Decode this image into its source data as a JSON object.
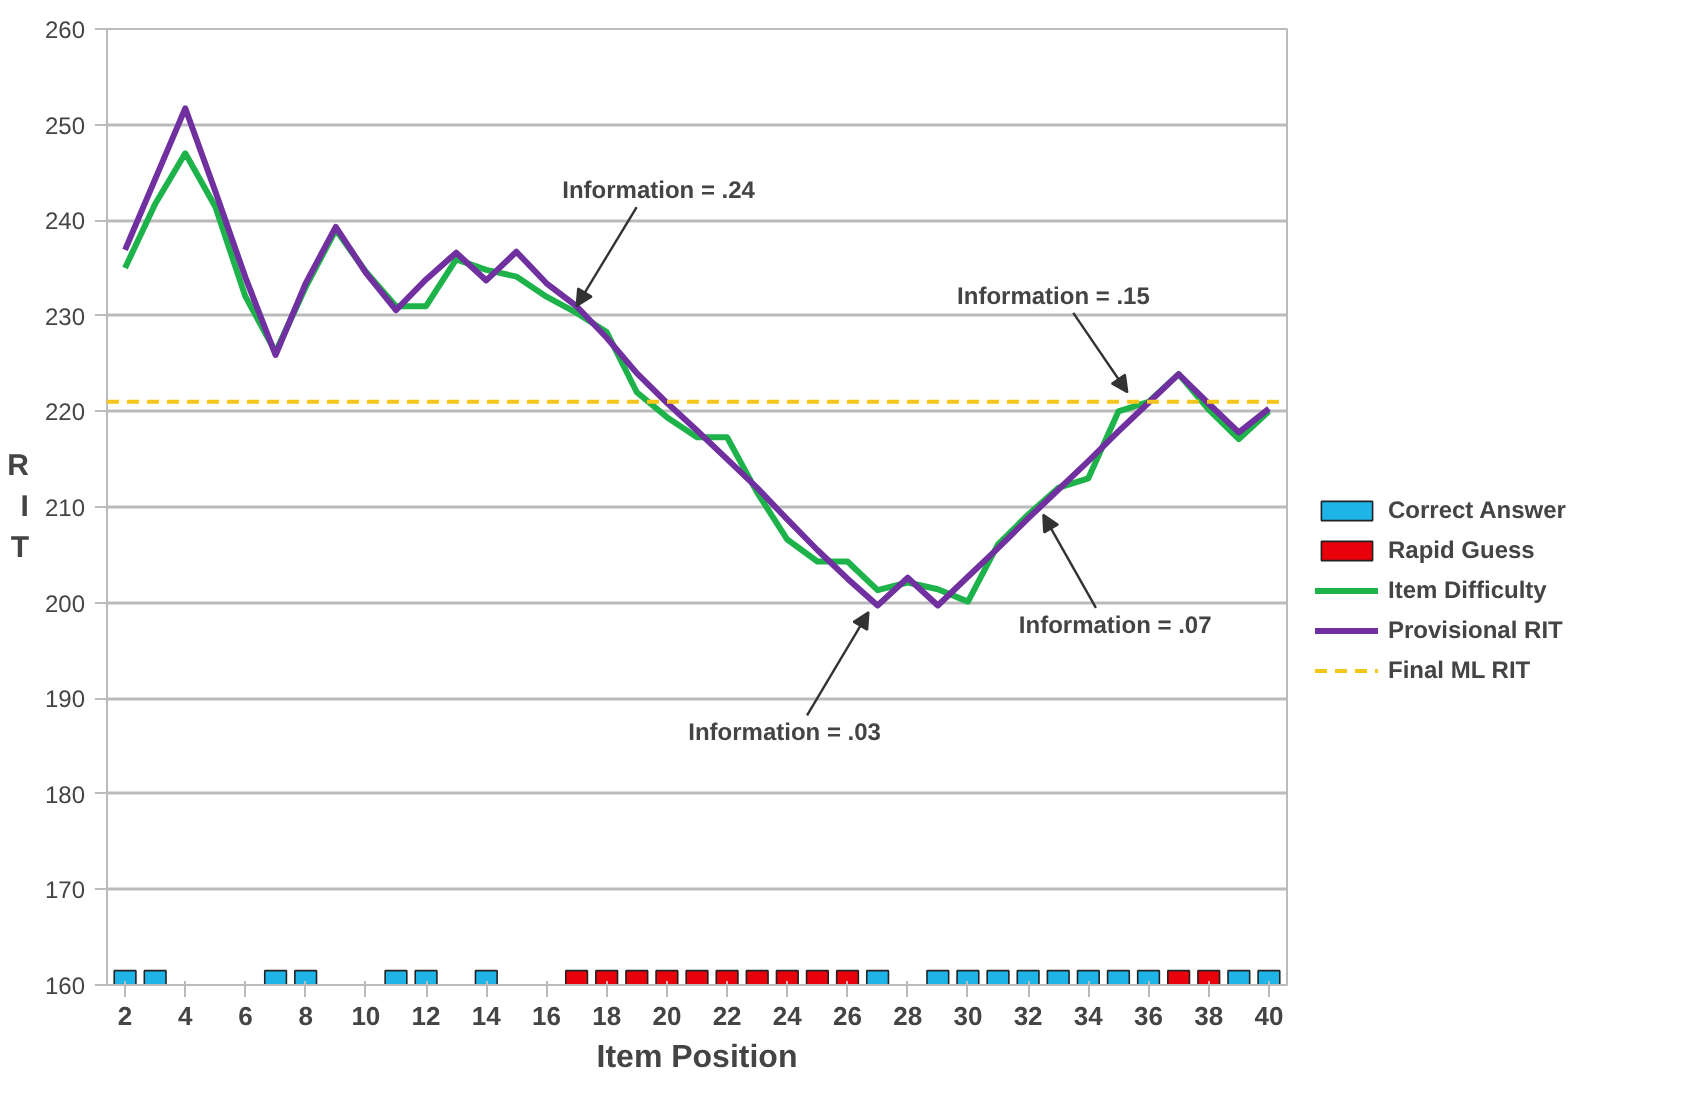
{
  "chart_data": {
    "type": "line",
    "xlabel": "Item Position",
    "ylabel": "RIT",
    "x": [
      2,
      3,
      4,
      5,
      6,
      7,
      8,
      9,
      10,
      11,
      12,
      13,
      14,
      15,
      16,
      17,
      18,
      19,
      20,
      21,
      22,
      23,
      24,
      25,
      26,
      27,
      28,
      29,
      30,
      31,
      32,
      33,
      34,
      35,
      36,
      37,
      38,
      39,
      40
    ],
    "series": [
      {
        "name": "Correct Answer",
        "type": "bar",
        "color": "#1fb4e8",
        "values": [
          161.5,
          161.5,
          null,
          null,
          null,
          161.5,
          161.5,
          null,
          null,
          161.5,
          161.5,
          null,
          161.5,
          null,
          null,
          null,
          null,
          null,
          null,
          null,
          null,
          null,
          null,
          null,
          null,
          161.5,
          null,
          161.5,
          161.5,
          161.5,
          161.5,
          161.5,
          161.5,
          161.5,
          161.5,
          null,
          null,
          161.5,
          161.5
        ]
      },
      {
        "name": "Rapid Guess",
        "type": "bar",
        "color": "#e8000b",
        "values": [
          null,
          null,
          null,
          null,
          null,
          null,
          null,
          null,
          null,
          null,
          null,
          null,
          null,
          null,
          null,
          161.5,
          161.5,
          161.5,
          161.5,
          161.5,
          161.5,
          161.5,
          161.5,
          161.5,
          161.5,
          null,
          null,
          null,
          null,
          null,
          null,
          null,
          null,
          null,
          null,
          161.5,
          161.5,
          null,
          null
        ]
      },
      {
        "name": "Item Difficulty",
        "color": "#1db34a",
        "values": [
          235,
          241.7,
          247,
          241.4,
          232,
          226.2,
          233,
          239,
          234.6,
          231,
          231,
          235.9,
          234.8,
          234.1,
          232,
          230.3,
          228.3,
          222,
          219.4,
          217.3,
          217.3,
          211.5,
          206.6,
          204.3,
          204.3,
          201.3,
          202.1,
          201.4,
          200.1,
          206.1,
          209.2,
          212,
          213,
          220,
          221,
          223.9,
          220.2,
          217.1,
          220
        ]
      },
      {
        "name": "Provisional RIT",
        "color": "#7030a0",
        "values": [
          236.9,
          244.3,
          251.7,
          243,
          234,
          225.9,
          233.4,
          239.3,
          234.5,
          230.6,
          233.8,
          236.6,
          233.7,
          236.7,
          233.4,
          231,
          227.7,
          224,
          220.9,
          218,
          215,
          212,
          208.7,
          205.5,
          202.5,
          199.7,
          202.6,
          199.7,
          202.7,
          205.7,
          208.8,
          211.8,
          214.8,
          217.9,
          220.9,
          223.9,
          220.8,
          217.8,
          220.3
        ]
      }
    ],
    "ref_lines": [
      {
        "axis": "y",
        "value": 221,
        "label": "Final ML RIT",
        "color": "#f5c518",
        "line_style": "dashed"
      }
    ],
    "annotations": [
      {
        "text": "Information = .24",
        "x": 17,
        "y": 231
      },
      {
        "text": "Information = .15",
        "x": 35.3,
        "y": 222
      },
      {
        "text": "Information = .07",
        "x": 32.5,
        "y": 209.2
      },
      {
        "text": "Information = .03",
        "x": 26.7,
        "y": 199
      }
    ],
    "xlim": [
      1.4,
      40.6
    ],
    "ylim": [
      160,
      260
    ],
    "xticks": [
      2,
      4,
      6,
      8,
      10,
      12,
      14,
      16,
      18,
      20,
      22,
      24,
      26,
      28,
      30,
      32,
      34,
      36,
      38,
      40
    ],
    "yticks": [
      160,
      170,
      180,
      190,
      200,
      210,
      220,
      230,
      240,
      250,
      260
    ],
    "grid": "y",
    "legend": "right",
    "line_style": "solid",
    "marker": "none"
  }
}
